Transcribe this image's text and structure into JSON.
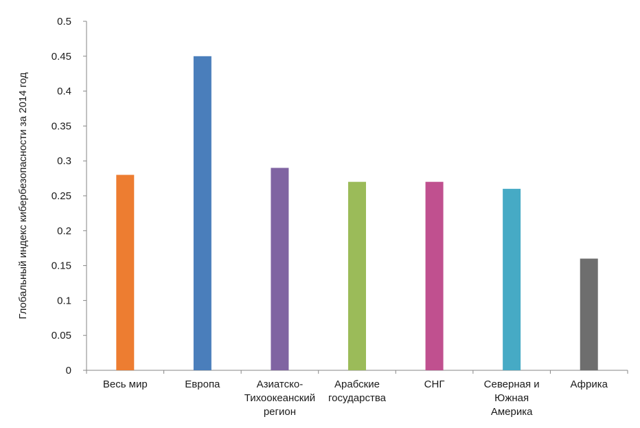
{
  "chart_data": {
    "type": "bar",
    "title": "",
    "xlabel": "",
    "ylabel": "Глобальный индекс кибербезопасности за 2014 год",
    "ylim": [
      0,
      0.5
    ],
    "yticks": [
      "0",
      "0.05",
      "0.1",
      "0.15",
      "0.2",
      "0.25",
      "0.3",
      "0.35",
      "0.4",
      "0.45",
      "0.5"
    ],
    "grid": false,
    "legend": "none",
    "categories": [
      [
        "Весь мир"
      ],
      [
        "Европа"
      ],
      [
        "Азиатско-",
        "Тихоокеанский",
        "регион"
      ],
      [
        "Арабские",
        "государства"
      ],
      [
        "СНГ"
      ],
      [
        "Северная и",
        "Южная",
        "Америка"
      ],
      [
        "Африка"
      ]
    ],
    "values": [
      0.28,
      0.45,
      0.29,
      0.27,
      0.27,
      0.26,
      0.16
    ],
    "colors": [
      "#ED7D31",
      "#4A7EBB",
      "#8064A2",
      "#9BBB59",
      "#C0508F",
      "#46AAC5",
      "#6E6E6E"
    ],
    "axis_color": "#868686"
  }
}
